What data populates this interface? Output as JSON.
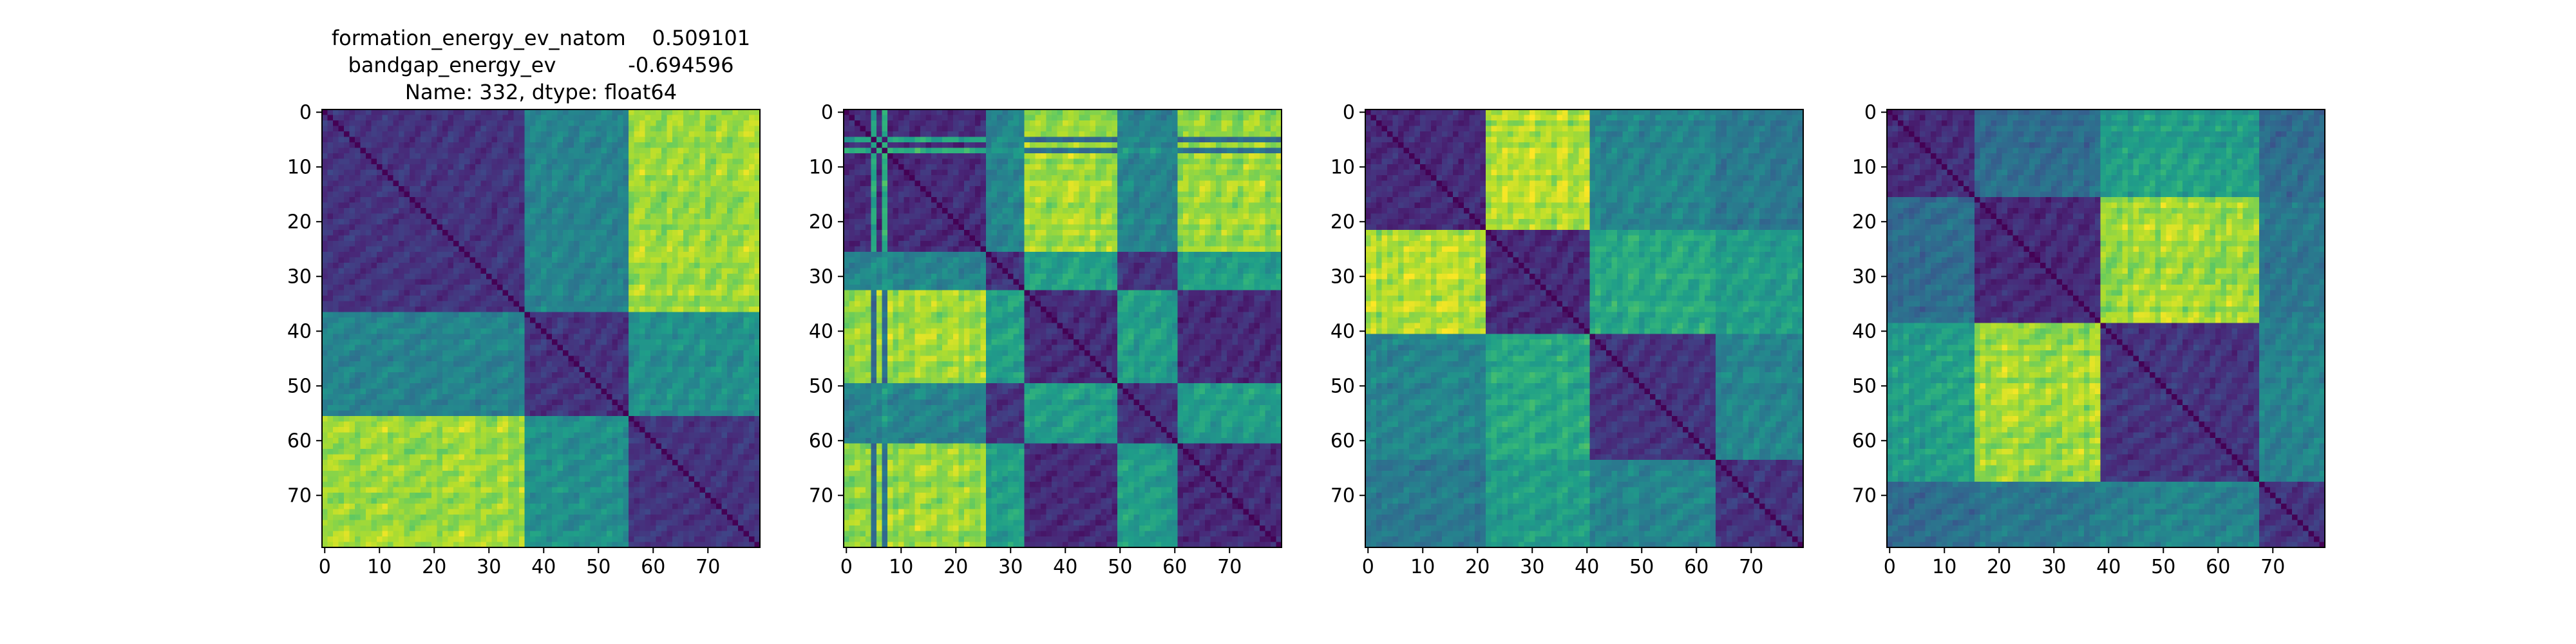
{
  "figure": {
    "background": "#ffffff",
    "colormap": "viridis"
  },
  "chart_data": [
    {
      "type": "heatmap",
      "title_lines": [
        "formation_energy_ev_natom    0.509101",
        "bandgap_energy_ev           -0.694596",
        "Name: 332, dtype: float64"
      ],
      "size": 80,
      "xticks": [
        0,
        10,
        20,
        30,
        40,
        50,
        60,
        70
      ],
      "yticks": [
        0,
        10,
        20,
        30,
        40,
        50,
        60,
        70
      ],
      "groups": [
        [
          0,
          37,
          0
        ],
        [
          37,
          56,
          1
        ],
        [
          56,
          80,
          2
        ]
      ],
      "group_distance": [
        [
          0.15,
          0.45,
          0.85
        ],
        [
          0.45,
          0.15,
          0.5
        ],
        [
          0.85,
          0.5,
          0.15
        ]
      ],
      "seed": 11
    },
    {
      "type": "heatmap",
      "title_lines": [],
      "size": 80,
      "xticks": [
        0,
        10,
        20,
        30,
        40,
        50,
        60,
        70
      ],
      "yticks": [
        0,
        10,
        20,
        30,
        40,
        50,
        60,
        70
      ],
      "groups": [
        [
          0,
          5,
          1
        ],
        [
          5,
          6,
          3
        ],
        [
          6,
          7,
          1
        ],
        [
          7,
          8,
          3
        ],
        [
          8,
          26,
          1
        ],
        [
          26,
          33,
          2
        ],
        [
          33,
          50,
          0
        ],
        [
          50,
          61,
          2
        ],
        [
          61,
          80,
          0
        ]
      ],
      "group_distance": [
        [
          0.12,
          0.85,
          0.55,
          0.35
        ],
        [
          0.85,
          0.12,
          0.45,
          0.6
        ],
        [
          0.55,
          0.45,
          0.15,
          0.5
        ],
        [
          0.35,
          0.6,
          0.5,
          0.1
        ]
      ],
      "seed": 23
    },
    {
      "type": "heatmap",
      "title_lines": [],
      "size": 80,
      "xticks": [
        0,
        10,
        20,
        30,
        40,
        50,
        60,
        70
      ],
      "yticks": [
        0,
        10,
        20,
        30,
        40,
        50,
        60,
        70
      ],
      "groups": [
        [
          0,
          22,
          0
        ],
        [
          22,
          41,
          1
        ],
        [
          41,
          64,
          2
        ],
        [
          64,
          80,
          3
        ]
      ],
      "group_distance": [
        [
          0.12,
          0.88,
          0.45,
          0.4
        ],
        [
          0.88,
          0.12,
          0.6,
          0.55
        ],
        [
          0.45,
          0.6,
          0.15,
          0.45
        ],
        [
          0.4,
          0.55,
          0.45,
          0.15
        ]
      ],
      "seed": 37
    },
    {
      "type": "heatmap",
      "title_lines": [],
      "size": 80,
      "xticks": [
        0,
        10,
        20,
        30,
        40,
        50,
        60,
        70
      ],
      "yticks": [
        0,
        10,
        20,
        30,
        40,
        50,
        60,
        70
      ],
      "groups": [
        [
          0,
          16,
          0
        ],
        [
          16,
          39,
          1
        ],
        [
          39,
          68,
          2
        ],
        [
          68,
          80,
          3
        ]
      ],
      "group_distance": [
        [
          0.12,
          0.35,
          0.55,
          0.35
        ],
        [
          0.35,
          0.12,
          0.85,
          0.4
        ],
        [
          0.55,
          0.85,
          0.15,
          0.45
        ],
        [
          0.35,
          0.4,
          0.45,
          0.15
        ]
      ],
      "seed": 53
    }
  ]
}
